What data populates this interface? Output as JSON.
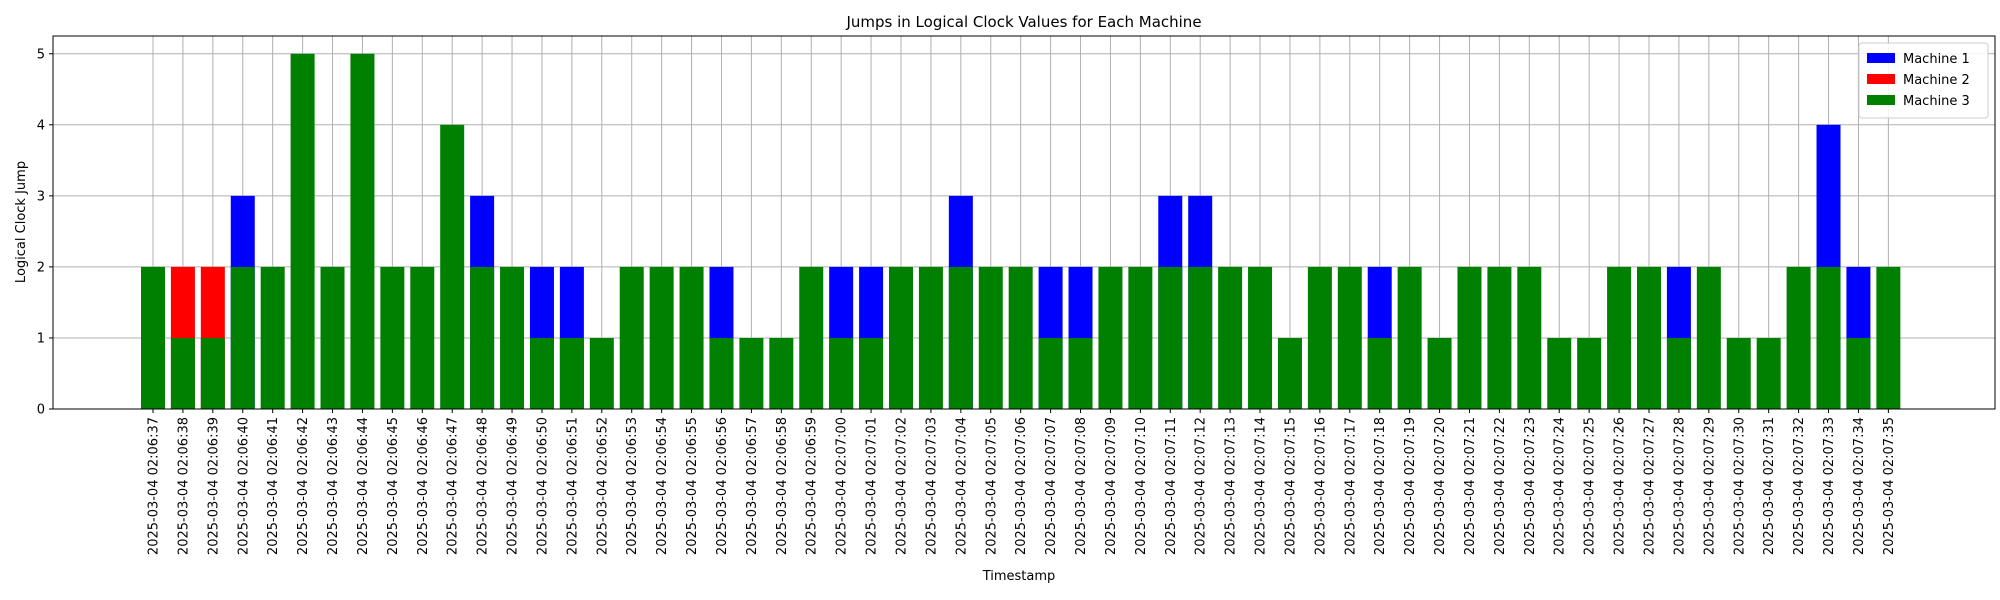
{
  "chart_data": {
    "type": "bar",
    "stacking": "overlay",
    "title": "Jumps in Logical Clock Values for Each Machine",
    "xlabel": "Timestamp",
    "ylabel": "Logical Clock Jump",
    "ylim": [
      0,
      5.25
    ],
    "yticks": [
      0,
      1,
      2,
      3,
      4,
      5
    ],
    "grid": true,
    "legend_position": "top-right",
    "categories": [
      "2025-03-04 02:06:37",
      "2025-03-04 02:06:38",
      "2025-03-04 02:06:39",
      "2025-03-04 02:06:40",
      "2025-03-04 02:06:41",
      "2025-03-04 02:06:42",
      "2025-03-04 02:06:43",
      "2025-03-04 02:06:44",
      "2025-03-04 02:06:45",
      "2025-03-04 02:06:46",
      "2025-03-04 02:06:47",
      "2025-03-04 02:06:48",
      "2025-03-04 02:06:49",
      "2025-03-04 02:06:50",
      "2025-03-04 02:06:51",
      "2025-03-04 02:06:52",
      "2025-03-04 02:06:53",
      "2025-03-04 02:06:54",
      "2025-03-04 02:06:55",
      "2025-03-04 02:06:56",
      "2025-03-04 02:06:57",
      "2025-03-04 02:06:58",
      "2025-03-04 02:06:59",
      "2025-03-04 02:07:00",
      "2025-03-04 02:07:01",
      "2025-03-04 02:07:02",
      "2025-03-04 02:07:03",
      "2025-03-04 02:07:04",
      "2025-03-04 02:07:05",
      "2025-03-04 02:07:06",
      "2025-03-04 02:07:07",
      "2025-03-04 02:07:08",
      "2025-03-04 02:07:09",
      "2025-03-04 02:07:10",
      "2025-03-04 02:07:11",
      "2025-03-04 02:07:12",
      "2025-03-04 02:07:13",
      "2025-03-04 02:07:14",
      "2025-03-04 02:07:15",
      "2025-03-04 02:07:16",
      "2025-03-04 02:07:17",
      "2025-03-04 02:07:18",
      "2025-03-04 02:07:19",
      "2025-03-04 02:07:20",
      "2025-03-04 02:07:21",
      "2025-03-04 02:07:22",
      "2025-03-04 02:07:23",
      "2025-03-04 02:07:24",
      "2025-03-04 02:07:25",
      "2025-03-04 02:07:26",
      "2025-03-04 02:07:27",
      "2025-03-04 02:07:28",
      "2025-03-04 02:07:29",
      "2025-03-04 02:07:30",
      "2025-03-04 02:07:31",
      "2025-03-04 02:07:32",
      "2025-03-04 02:07:33",
      "2025-03-04 02:07:34",
      "2025-03-04 02:07:35"
    ],
    "series": [
      {
        "name": "Machine 1",
        "color": "#0000ff",
        "values": [
          null,
          null,
          null,
          3,
          null,
          null,
          null,
          null,
          null,
          null,
          null,
          3,
          null,
          2,
          2,
          null,
          null,
          null,
          null,
          2,
          null,
          null,
          null,
          2,
          2,
          null,
          null,
          3,
          null,
          null,
          2,
          2,
          null,
          null,
          3,
          3,
          null,
          null,
          null,
          null,
          null,
          2,
          null,
          null,
          null,
          null,
          null,
          null,
          null,
          null,
          null,
          2,
          null,
          null,
          null,
          null,
          4,
          2,
          null
        ]
      },
      {
        "name": "Machine 2",
        "color": "#ff0000",
        "values": [
          null,
          2,
          2,
          null,
          null,
          null,
          null,
          null,
          null,
          null,
          null,
          null,
          null,
          null,
          null,
          null,
          null,
          null,
          null,
          null,
          null,
          null,
          null,
          null,
          null,
          null,
          null,
          null,
          null,
          null,
          null,
          null,
          null,
          null,
          null,
          null,
          null,
          null,
          null,
          null,
          null,
          null,
          null,
          null,
          null,
          null,
          null,
          null,
          null,
          null,
          null,
          null,
          null,
          null,
          null,
          null,
          null,
          null,
          null
        ]
      },
      {
        "name": "Machine 3",
        "color": "#008000",
        "values": [
          2,
          1,
          1,
          2,
          2,
          5,
          2,
          5,
          2,
          2,
          4,
          2,
          2,
          1,
          1,
          1,
          2,
          2,
          2,
          1,
          1,
          1,
          2,
          1,
          1,
          2,
          2,
          2,
          2,
          2,
          1,
          1,
          2,
          2,
          2,
          2,
          2,
          2,
          1,
          2,
          2,
          1,
          2,
          1,
          2,
          2,
          2,
          1,
          1,
          2,
          2,
          1,
          2,
          1,
          1,
          2,
          2,
          1,
          2
        ]
      }
    ]
  }
}
